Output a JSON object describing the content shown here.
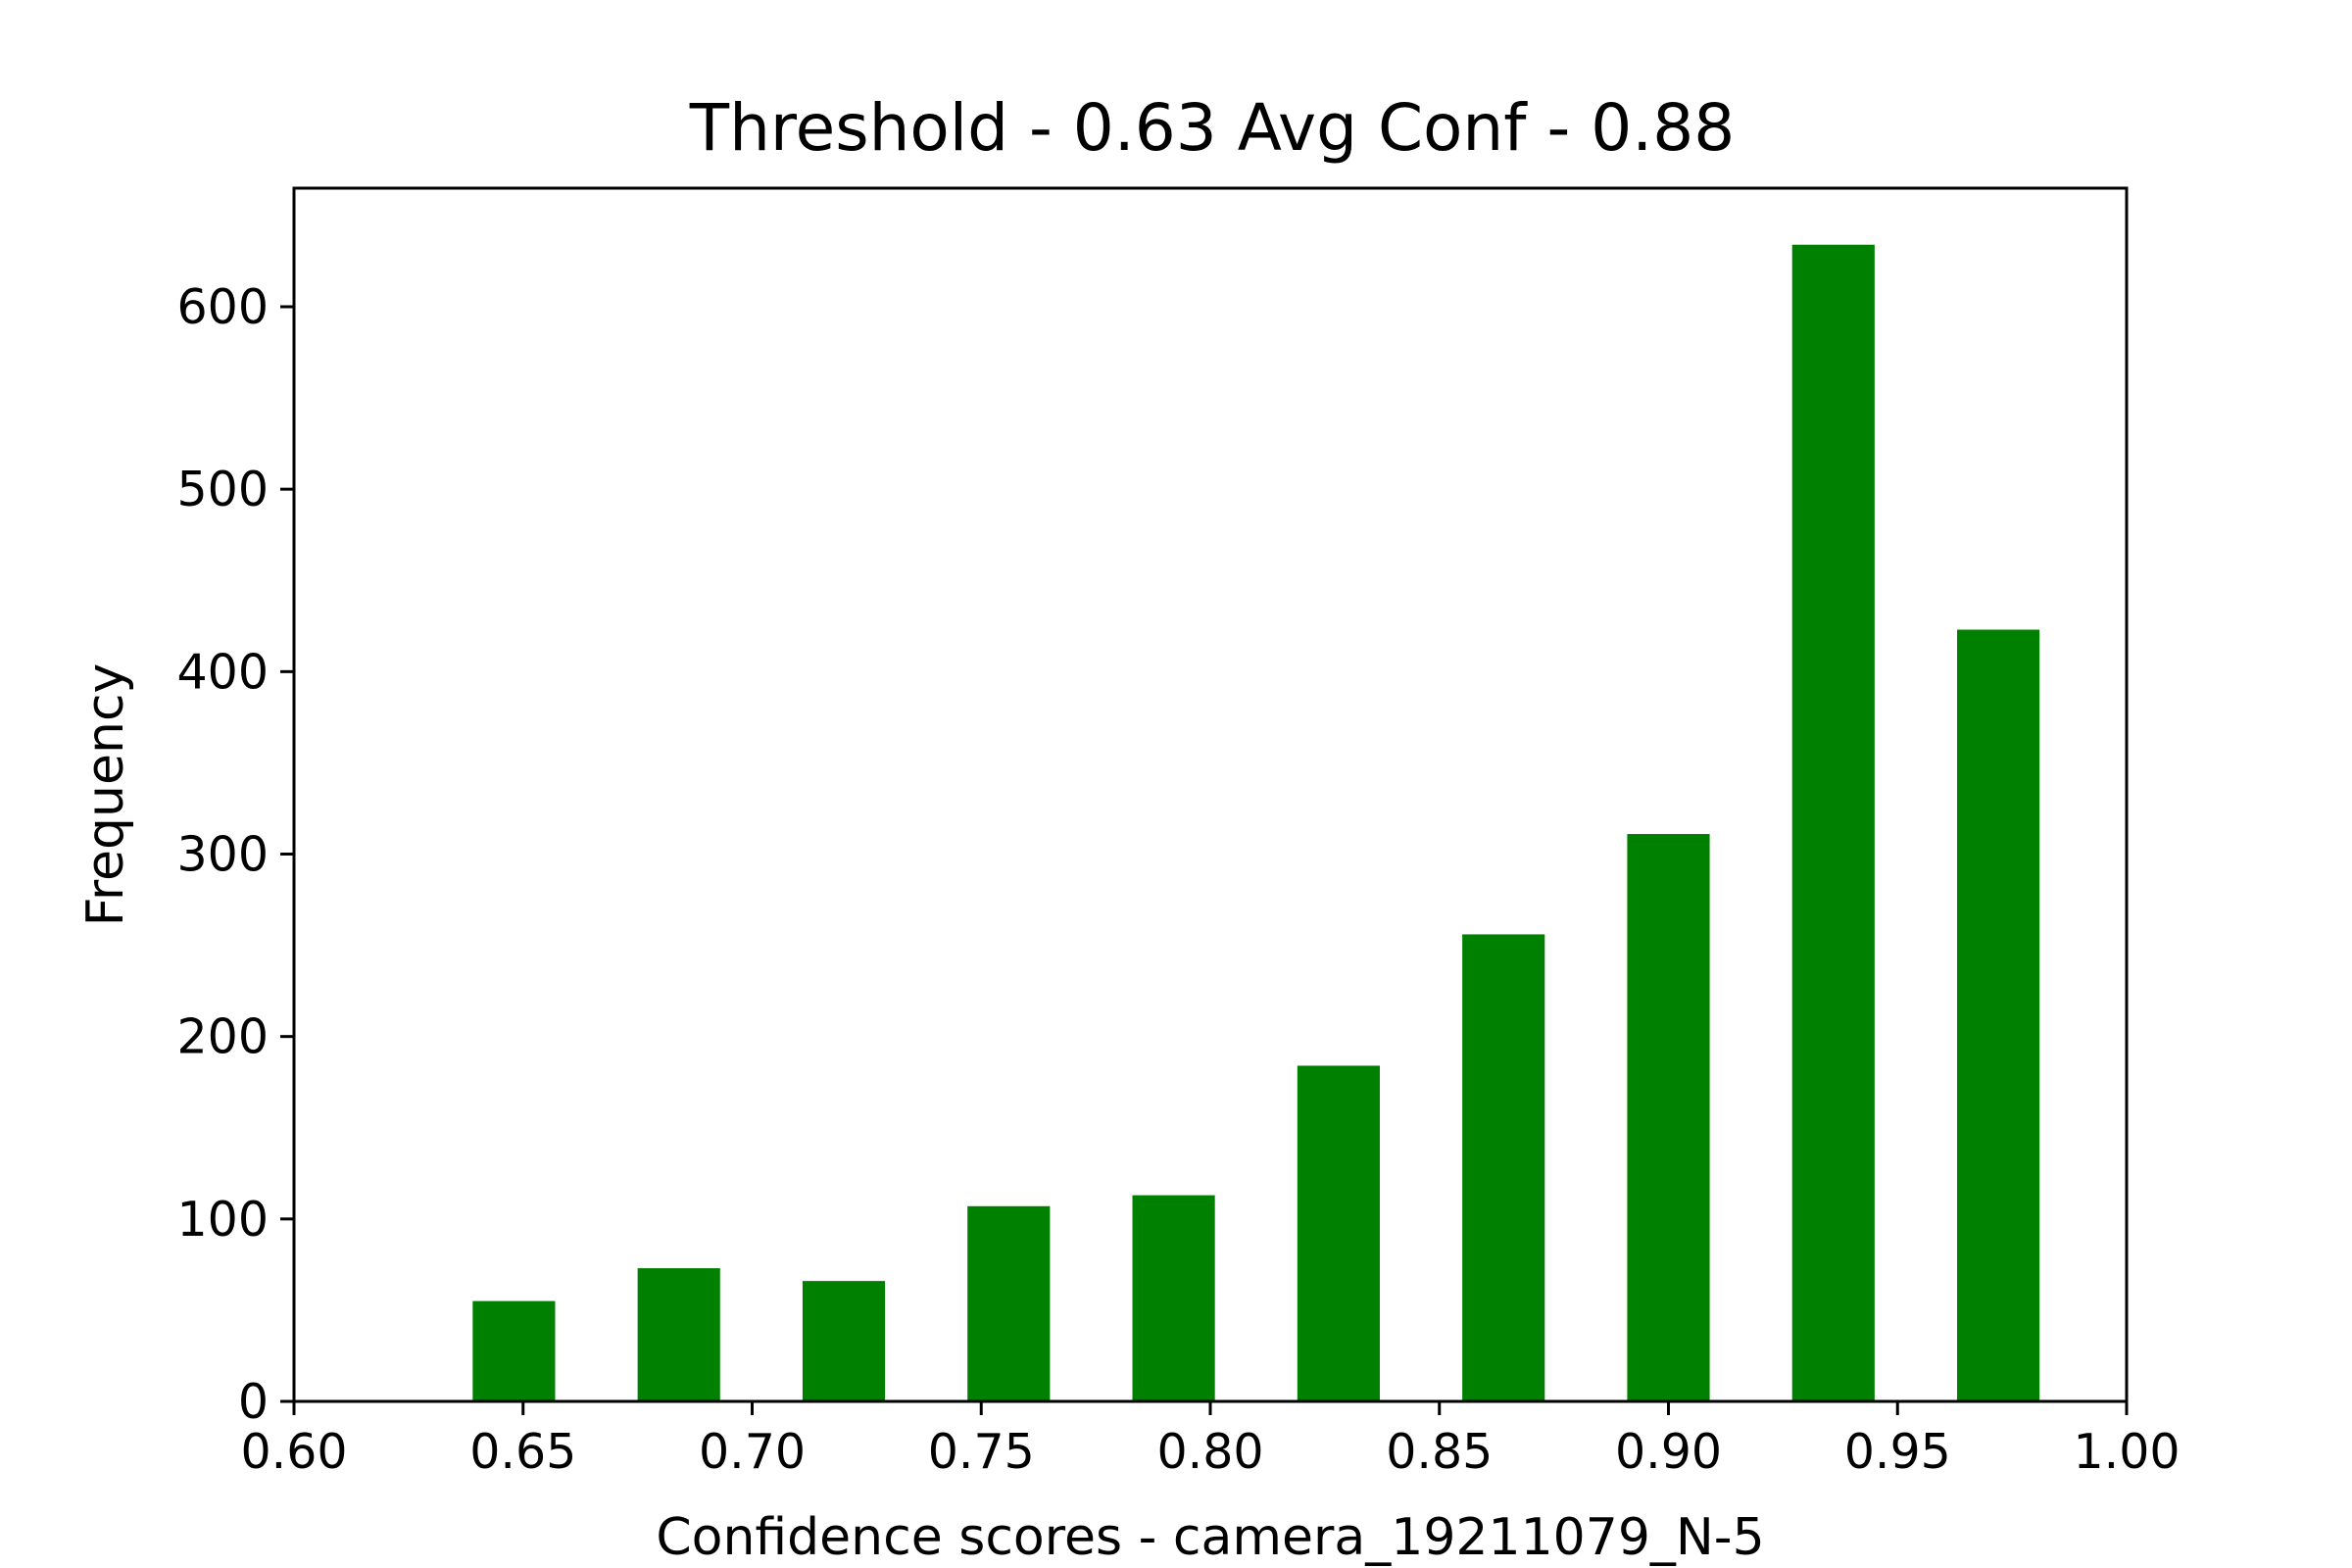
{
  "chart_data": {
    "type": "bar",
    "title": "Threshold - 0.63 Avg Conf - 0.88",
    "xlabel": "Confidence scores - camera_19211079_N-5",
    "ylabel": "Frequency",
    "xlim": [
      0.6,
      1.0
    ],
    "ylim": [
      0,
      665
    ],
    "bar_width": 0.018,
    "x": [
      0.648,
      0.684,
      0.72,
      0.756,
      0.792,
      0.828,
      0.864,
      0.9,
      0.936,
      0.972
    ],
    "values": [
      55,
      73,
      66,
      107,
      113,
      184,
      256,
      311,
      634,
      423
    ],
    "xticks": [
      0.6,
      0.65,
      0.7,
      0.75,
      0.8,
      0.85,
      0.9,
      0.95,
      1.0
    ],
    "xtick_labels": [
      "0.60",
      "0.65",
      "0.70",
      "0.75",
      "0.80",
      "0.85",
      "0.90",
      "0.95",
      "1.00"
    ],
    "yticks": [
      0,
      100,
      200,
      300,
      400,
      500,
      600
    ],
    "ytick_labels": [
      "0",
      "100",
      "200",
      "300",
      "400",
      "500",
      "600"
    ],
    "bar_color": "#008000",
    "grid": false,
    "legend": "none"
  }
}
